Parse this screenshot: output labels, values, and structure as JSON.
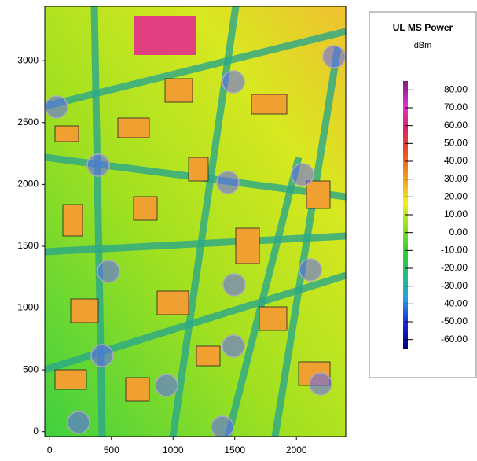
{
  "chart_data": {
    "type": "heatmap",
    "xlim": [
      -40,
      2400
    ],
    "ylim": [
      -40,
      3440
    ],
    "xticks": [
      0,
      500,
      1000,
      1500,
      2000
    ],
    "yticks": [
      0,
      500,
      1000,
      1500,
      2000,
      2500,
      3000
    ],
    "colorbar": {
      "title": "UL MS Power",
      "unit": "dBm",
      "lim": [
        -65,
        85
      ],
      "colors": [
        "#000080",
        "#2020e0",
        "#20a0e0",
        "#20c080",
        "#30d030",
        "#90e020",
        "#f0f020",
        "#f0a020",
        "#f05020",
        "#e02060",
        "#e030d0",
        "#802080"
      ],
      "ticks": [
        {
          "value": 80,
          "label": "80.00"
        },
        {
          "value": 70,
          "label": "70.00"
        },
        {
          "value": 60,
          "label": "60.00"
        },
        {
          "value": 50,
          "label": "50.00"
        },
        {
          "value": 40,
          "label": "40.00"
        },
        {
          "value": 30,
          "label": "30.00"
        },
        {
          "value": 20,
          "label": "20.00"
        },
        {
          "value": 10,
          "label": "10.00"
        },
        {
          "value": 0,
          "label": "0.00"
        },
        {
          "value": -10,
          "label": "-10.00"
        },
        {
          "value": -20,
          "label": "-20.00"
        },
        {
          "value": -30,
          "label": "-30.00"
        },
        {
          "value": -40,
          "label": "-40.00"
        },
        {
          "value": -50,
          "label": "-50.00"
        },
        {
          "value": -60,
          "label": "-60.00"
        }
      ]
    }
  }
}
